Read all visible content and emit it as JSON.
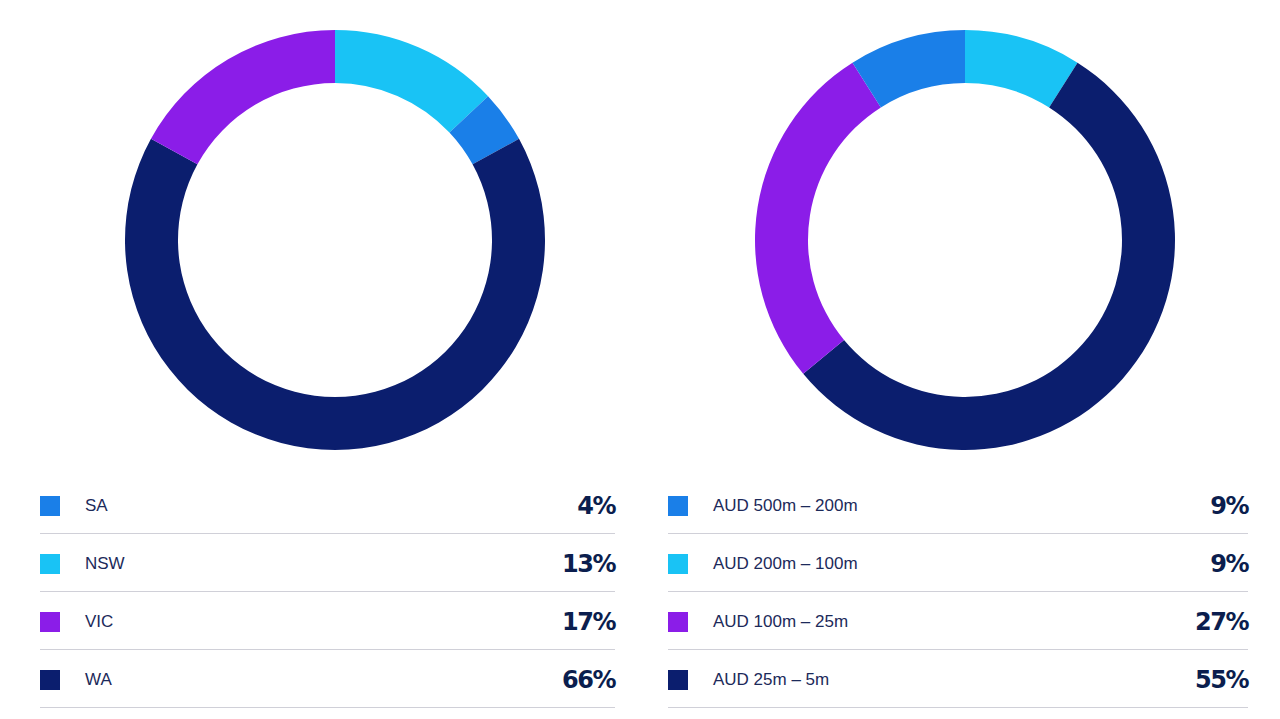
{
  "chart_data": [
    {
      "type": "pie",
      "categories": [
        "SA",
        "NSW",
        "VIC",
        "WA"
      ],
      "values": [
        4,
        13,
        17,
        66
      ],
      "value_labels": [
        "4%",
        "13%",
        "17%",
        "66%"
      ],
      "colors": [
        "#1a7fe8",
        "#19c3f5",
        "#8b1de8",
        "#0b1e6e"
      ],
      "legend": "bottom"
    },
    {
      "type": "pie",
      "categories": [
        "AUD 500m – 200m",
        "AUD 200m – 100m",
        "AUD 100m – 25m",
        "AUD 25m – 5m"
      ],
      "values": [
        9,
        9,
        27,
        55
      ],
      "value_labels": [
        "9%",
        "9%",
        "27%",
        "55%"
      ],
      "colors": [
        "#1a7fe8",
        "#19c3f5",
        "#8b1de8",
        "#0b1e6e"
      ],
      "legend": "bottom"
    }
  ]
}
